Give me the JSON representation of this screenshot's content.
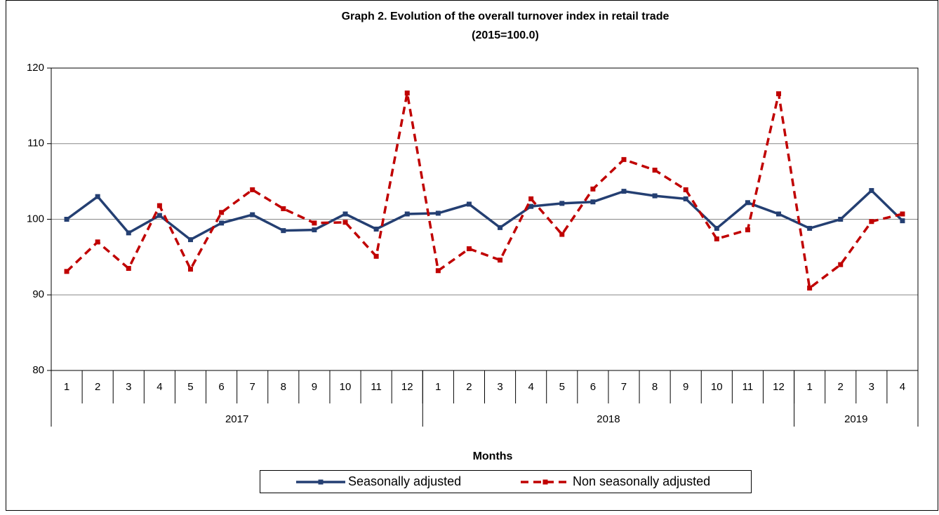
{
  "chart_data": {
    "type": "line",
    "title": "Graph 2. Evolution of the overall turnover index in retail trade",
    "subtitle": "(2015=100.0)",
    "x_label": "Months",
    "categories": [
      "1",
      "2",
      "3",
      "4",
      "5",
      "6",
      "7",
      "8",
      "9",
      "10",
      "11",
      "12",
      "1",
      "2",
      "3",
      "4",
      "5",
      "6",
      "7",
      "8",
      "9",
      "10",
      "11",
      "12",
      "1",
      "2",
      "3",
      "4"
    ],
    "year_labels": [
      "2017",
      "2018",
      "2019"
    ],
    "series": [
      {
        "name": "Seasonally adjusted",
        "color": "#243f72",
        "dashed": false,
        "values": [
          100.0,
          103.0,
          98.2,
          100.5,
          97.3,
          99.5,
          100.6,
          98.5,
          98.6,
          100.7,
          98.7,
          100.7,
          100.8,
          102.0,
          98.9,
          101.7,
          102.1,
          102.3,
          103.7,
          103.1,
          102.7,
          98.8,
          102.2,
          100.7,
          98.8,
          100.0,
          103.8,
          99.8
        ]
      },
      {
        "name": "Non seasonally adjusted",
        "color": "#c00000",
        "dashed": true,
        "values": [
          93.1,
          97.0,
          93.5,
          101.8,
          93.4,
          100.9,
          103.9,
          101.4,
          99.5,
          99.6,
          95.1,
          116.7,
          93.2,
          96.1,
          94.6,
          102.7,
          98.0,
          104.0,
          107.9,
          106.5,
          103.9,
          97.4,
          98.6,
          116.6,
          90.9,
          94.0,
          99.7,
          100.7
        ]
      }
    ],
    "ylim": [
      80,
      120
    ],
    "yticks": [
      80,
      90,
      100,
      110,
      120
    ],
    "grid": true
  }
}
